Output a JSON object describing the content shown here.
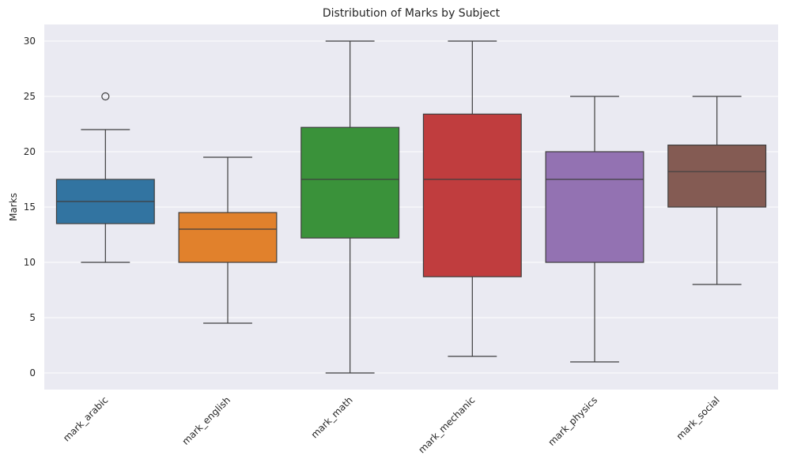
{
  "chart_data": {
    "type": "box",
    "title": "Distribution of Marks by Subject",
    "xlabel": "",
    "ylabel": "Marks",
    "ylim": [
      -1.5,
      31.5
    ],
    "yticks": [
      0,
      5,
      10,
      15,
      20,
      25,
      30
    ],
    "grid": true,
    "categories": [
      "mark_arabic",
      "mark_english",
      "mark_math",
      "mark_mechanic",
      "mark_physics",
      "mark_social"
    ],
    "boxes": [
      {
        "category": "mark_arabic",
        "whisker_low": 10,
        "q1": 13.5,
        "median": 15.5,
        "q3": 17.5,
        "whisker_high": 22,
        "outliers": [
          25
        ],
        "color": "#3274a1"
      },
      {
        "category": "mark_english",
        "whisker_low": 4.5,
        "q1": 10,
        "median": 13,
        "q3": 14.5,
        "whisker_high": 19.5,
        "outliers": [],
        "color": "#e1812c"
      },
      {
        "category": "mark_math",
        "whisker_low": 0,
        "q1": 12.2,
        "median": 17.5,
        "q3": 22.2,
        "whisker_high": 30,
        "outliers": [],
        "color": "#3a923a"
      },
      {
        "category": "mark_mechanic",
        "whisker_low": 1.5,
        "q1": 8.7,
        "median": 17.5,
        "q3": 23.4,
        "whisker_high": 30,
        "outliers": [],
        "color": "#c03d3e"
      },
      {
        "category": "mark_physics",
        "whisker_low": 1,
        "q1": 10,
        "median": 17.5,
        "q3": 20,
        "whisker_high": 25,
        "outliers": [],
        "color": "#9372b2"
      },
      {
        "category": "mark_social",
        "whisker_low": 8,
        "q1": 15,
        "median": 18.2,
        "q3": 20.6,
        "whisker_high": 25,
        "outliers": [],
        "color": "#845b53"
      }
    ],
    "colors": {
      "background": "#eaeaf2",
      "grid": "#ffffff",
      "line": "#3f3f3f"
    }
  }
}
